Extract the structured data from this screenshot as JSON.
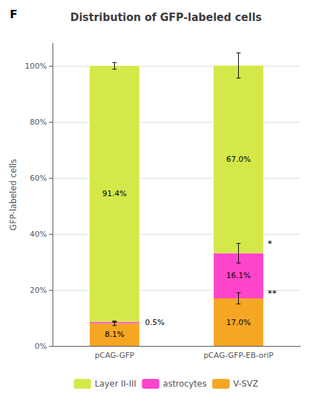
{
  "chart_data": {
    "type": "bar",
    "title": "Distribution of GFP-labeled cells",
    "ylabel": "GFP-labeled cells",
    "categories": [
      "pCAG-GFP",
      "pCAG-GFP-EB-oriP"
    ],
    "stacked": true,
    "data_labels": true,
    "grid": true,
    "legend": "bottom",
    "series": [
      {
        "name": "V-SVZ",
        "color": "#f5a623",
        "values": [
          8.1,
          17.0
        ],
        "value_labels": [
          "8.1%",
          "17.0%"
        ],
        "errors": [
          0.8,
          2.0
        ]
      },
      {
        "name": "astrocytes",
        "color": "#ff44cc",
        "values": [
          0.5,
          16.1
        ],
        "value_labels": [
          "0.5%",
          "16.1%"
        ],
        "errors": [
          0.15,
          3.5
        ]
      },
      {
        "name": "Layer II-III",
        "color": "#d4e84a",
        "values": [
          91.4,
          67.0
        ],
        "value_labels": [
          "91.4%",
          "67.0%"
        ],
        "errors": [
          1.2,
          4.5
        ]
      }
    ],
    "ylim": [
      0,
      108
    ],
    "yticks": [
      {
        "value": 0,
        "label": "0%"
      },
      {
        "value": 20,
        "label": "20%"
      },
      {
        "value": 40,
        "label": "40%"
      },
      {
        "value": 60,
        "label": "60%"
      },
      {
        "value": 80,
        "label": "80%"
      },
      {
        "value": 100,
        "label": "100%"
      }
    ],
    "annotations": [
      {
        "text": "F"
      },
      {
        "text": "*",
        "category": "pCAG-GFP-EB-oriP",
        "series": "astrocytes"
      },
      {
        "text": "**",
        "category": "pCAG-GFP-EB-oriP",
        "series": "V-SVZ"
      }
    ]
  }
}
